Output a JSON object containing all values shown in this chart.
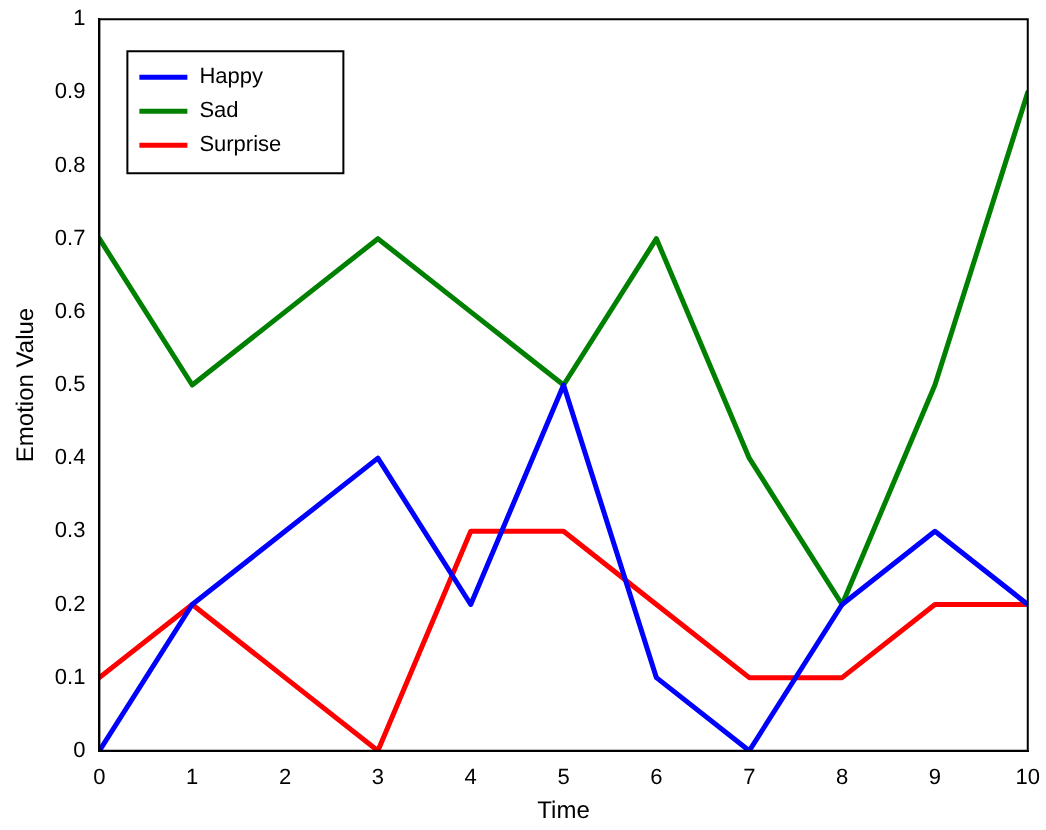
{
  "chart_data": {
    "type": "line",
    "xlabel": "Time",
    "ylabel": "Emotion Value",
    "x": [
      0,
      1,
      2,
      3,
      4,
      5,
      6,
      7,
      8,
      9,
      10
    ],
    "series": [
      {
        "name": "Happy",
        "color": "#0000ff",
        "values": [
          0,
          0.2,
          0.3,
          0.4,
          0.2,
          0.5,
          0.1,
          0,
          0.2,
          0.3,
          0.2
        ]
      },
      {
        "name": "Sad",
        "color": "#008000",
        "values": [
          0.7,
          0.5,
          0.6,
          0.7,
          0.6,
          0.5,
          0.7,
          0.4,
          0.2,
          0.5,
          0.9
        ]
      },
      {
        "name": "Surprise",
        "color": "#ff0000",
        "values": [
          0.1,
          0.2,
          0.1,
          0,
          0.3,
          0.3,
          0.2,
          0.1,
          0.1,
          0.2,
          0.2
        ]
      }
    ],
    "xlim": [
      0,
      10
    ],
    "xticks": [
      0,
      1,
      2,
      3,
      4,
      5,
      6,
      7,
      8,
      9,
      10
    ],
    "ylim": [
      0,
      1
    ],
    "yticks": [
      0,
      0.1,
      0.2,
      0.3,
      0.4,
      0.5,
      0.6,
      0.7,
      0.8,
      0.9,
      1
    ],
    "grid": false,
    "legend": "top left",
    "marker": "none",
    "line_style": "solid"
  }
}
